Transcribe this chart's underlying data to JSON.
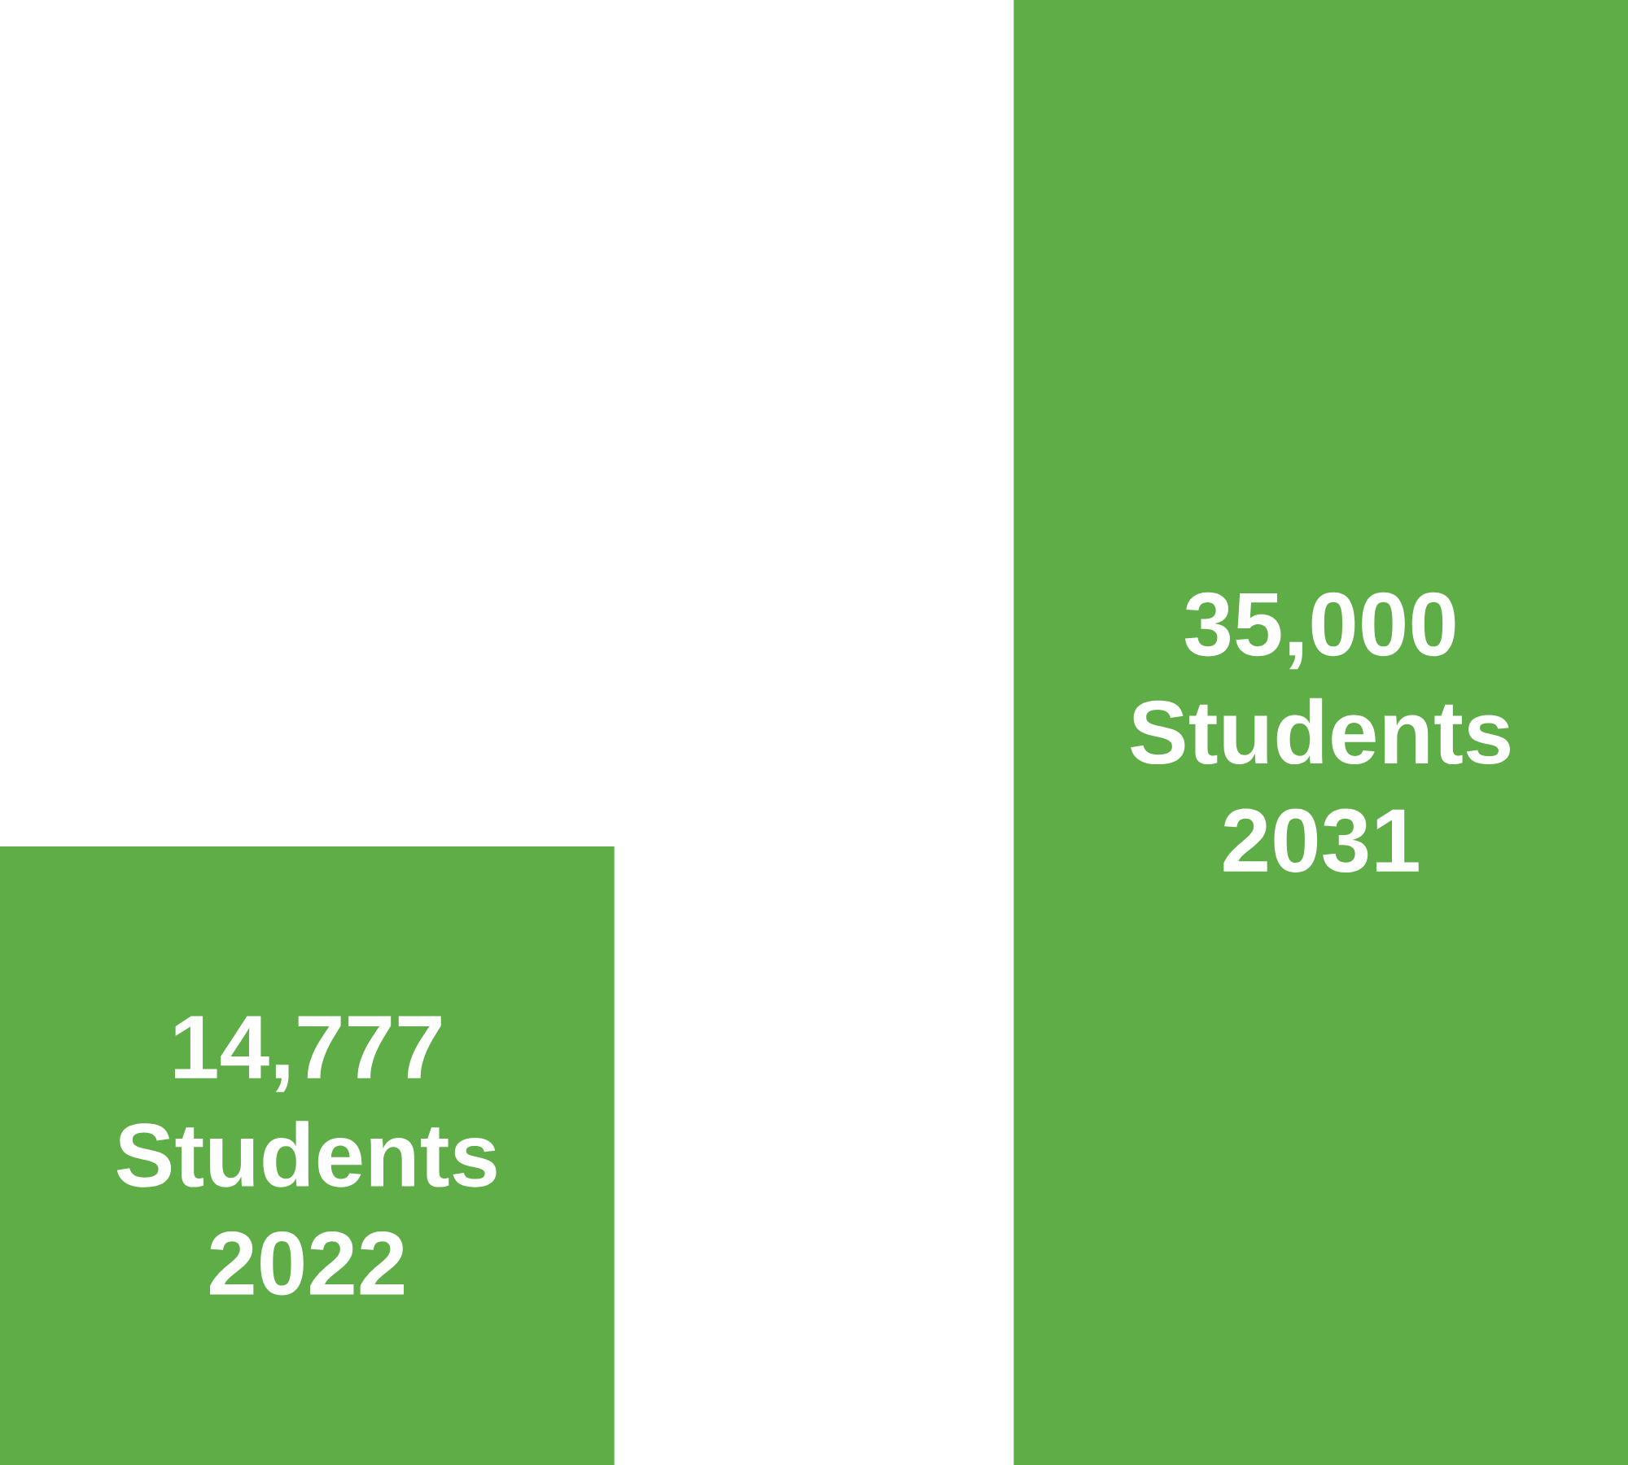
{
  "chart_data": {
    "type": "bar",
    "categories": [
      "2022",
      "2031"
    ],
    "values": [
      14777,
      35000
    ],
    "color": "#5fad47",
    "value_labels": [
      "14,777 Students",
      "35,000 Students"
    ]
  }
}
